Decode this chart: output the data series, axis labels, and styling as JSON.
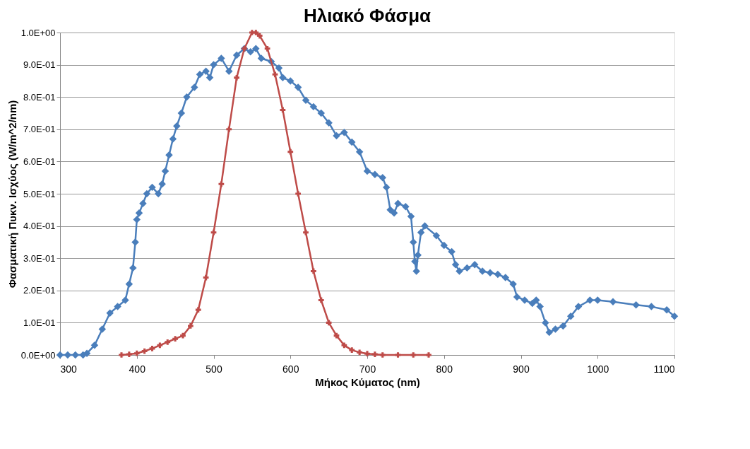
{
  "chart_data": {
    "type": "line",
    "title": "Ηλιακό Φάσμα",
    "xlabel": "Μήκος Κύματος (nm)",
    "ylabel": "Φασματική Πυκν. Ισχύος (W/m^2/nm)",
    "xlim": [
      300,
      1100
    ],
    "xticks": [
      300,
      400,
      500,
      600,
      700,
      800,
      900,
      1000,
      1100
    ],
    "ylim": [
      0,
      1
    ],
    "yticks": [
      {
        "value": 0,
        "label": "0.0E+00"
      },
      {
        "value": 0.1,
        "label": "1.0E-01"
      },
      {
        "value": 0.2,
        "label": "2.0E-01"
      },
      {
        "value": 0.3,
        "label": "3.0E-01"
      },
      {
        "value": 0.4,
        "label": "4.0E-01"
      },
      {
        "value": 0.5,
        "label": "5.0E-01"
      },
      {
        "value": 0.6,
        "label": "6.0E-01"
      },
      {
        "value": 0.7,
        "label": "7.0E-01"
      },
      {
        "value": 0.8,
        "label": "8.0E-01"
      },
      {
        "value": 0.9,
        "label": "9.0E-01"
      },
      {
        "value": 1,
        "label": "1.0E+00"
      }
    ],
    "grid": "y",
    "legend": false,
    "line_style": "solid",
    "series": [
      {
        "color": "#4a7ebb",
        "marker": "diamond",
        "x": [
          300,
          310,
          320,
          330,
          335,
          345,
          355,
          365,
          375,
          385,
          390,
          395,
          398,
          400,
          403,
          408,
          413,
          420,
          428,
          433,
          437,
          442,
          447,
          452,
          458,
          465,
          475,
          482,
          490,
          495,
          500,
          510,
          520,
          530,
          540,
          548,
          555,
          562,
          575,
          585,
          590,
          600,
          610,
          620,
          630,
          640,
          650,
          660,
          670,
          680,
          690,
          700,
          710,
          720,
          725,
          730,
          735,
          740,
          750,
          757,
          760,
          762,
          764,
          766,
          770,
          775,
          790,
          800,
          810,
          815,
          820,
          830,
          840,
          850,
          860,
          870,
          880,
          890,
          895,
          905,
          915,
          920,
          925,
          932,
          937,
          945,
          955,
          965,
          975,
          990,
          1000,
          1020,
          1050,
          1070,
          1090,
          1100
        ],
        "values": [
          0,
          0,
          0,
          0,
          0.005,
          0.03,
          0.08,
          0.13,
          0.15,
          0.17,
          0.22,
          0.27,
          0.35,
          0.42,
          0.44,
          0.47,
          0.5,
          0.52,
          0.5,
          0.53,
          0.57,
          0.62,
          0.67,
          0.71,
          0.75,
          0.8,
          0.83,
          0.87,
          0.88,
          0.86,
          0.9,
          0.92,
          0.88,
          0.93,
          0.95,
          0.94,
          0.95,
          0.92,
          0.91,
          0.89,
          0.86,
          0.85,
          0.83,
          0.79,
          0.77,
          0.75,
          0.72,
          0.68,
          0.69,
          0.66,
          0.63,
          0.57,
          0.56,
          0.55,
          0.52,
          0.45,
          0.44,
          0.47,
          0.46,
          0.43,
          0.35,
          0.29,
          0.26,
          0.31,
          0.38,
          0.4,
          0.37,
          0.34,
          0.32,
          0.28,
          0.26,
          0.27,
          0.28,
          0.26,
          0.255,
          0.25,
          0.24,
          0.22,
          0.18,
          0.17,
          0.16,
          0.17,
          0.15,
          0.1,
          0.07,
          0.08,
          0.09,
          0.12,
          0.15,
          0.17,
          0.17,
          0.165,
          0.155,
          0.15,
          0.14,
          0.12
        ]
      },
      {
        "color": "#be4b48",
        "marker": "cross",
        "x": [
          380,
          390,
          400,
          410,
          420,
          430,
          440,
          450,
          460,
          470,
          480,
          490,
          500,
          510,
          520,
          530,
          540,
          550,
          555,
          560,
          570,
          580,
          590,
          600,
          610,
          620,
          630,
          640,
          650,
          660,
          670,
          680,
          690,
          700,
          710,
          720,
          740,
          760,
          780
        ],
        "values": [
          0,
          0.002,
          0.005,
          0.012,
          0.02,
          0.03,
          0.04,
          0.05,
          0.06,
          0.09,
          0.14,
          0.24,
          0.38,
          0.53,
          0.7,
          0.86,
          0.95,
          1.0,
          1.0,
          0.99,
          0.95,
          0.87,
          0.76,
          0.63,
          0.5,
          0.38,
          0.26,
          0.17,
          0.1,
          0.06,
          0.03,
          0.015,
          0.008,
          0.004,
          0.002,
          0,
          0,
          0,
          0
        ]
      }
    ]
  }
}
